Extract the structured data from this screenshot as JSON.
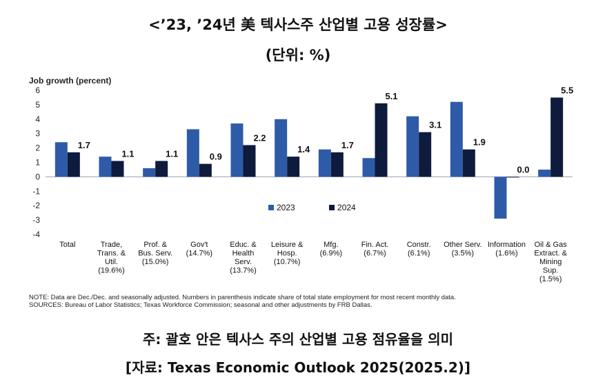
{
  "page": {
    "title": "<’23, ’24년 美 텍사스주 산업별 고용 성장률>",
    "unit": "(단위: %)",
    "footnote": "주: 괄호 안은 텍사스 주의 산업별 고용 점유율을 의미",
    "source": "[자료: Texas Economic Outlook 2025(2025.2)]"
  },
  "chart_data": {
    "type": "bar",
    "ylabel": "Job growth (percent)",
    "ylim": [
      -4,
      6
    ],
    "yticks": [
      6,
      5,
      4,
      3,
      2,
      1,
      0,
      -1,
      -2,
      -3,
      -4
    ],
    "categories": [
      [
        "Total"
      ],
      [
        "Trade,",
        "Trans. &",
        "Util.",
        "(19.6%)"
      ],
      [
        "Prof. &",
        "Bus. Serv.",
        "(15.0%)"
      ],
      [
        "Gov't",
        "(14.7%)"
      ],
      [
        "Educ. &",
        "Health",
        "Serv.",
        "(13.7%)"
      ],
      [
        "Leisure &",
        "Hosp.",
        "(10.7%)"
      ],
      [
        "Mfg.",
        "(6.9%)"
      ],
      [
        "Fin. Act.",
        "(6.7%)"
      ],
      [
        "Constr.",
        "(6.1%)"
      ],
      [
        "Other Serv.",
        "(3.5%)"
      ],
      [
        "Information",
        "(1.6%)"
      ],
      [
        "Oil & Gas",
        "Extract. &",
        "Mining",
        "Sup.",
        "(1.5%)"
      ]
    ],
    "series": [
      {
        "name": "2023",
        "color": "#2E5BA8",
        "values": [
          2.4,
          1.4,
          0.6,
          3.3,
          3.7,
          4.0,
          1.9,
          1.3,
          4.2,
          5.2,
          -2.9,
          0.5
        ]
      },
      {
        "name": "2024",
        "color": "#0F1B3D",
        "values": [
          1.7,
          1.1,
          1.1,
          0.9,
          2.2,
          1.4,
          1.7,
          5.1,
          3.1,
          1.9,
          0.0,
          5.5
        ],
        "data_labels": [
          "1.7",
          "1.1",
          "1.1",
          "0.9",
          "2.2",
          "1.4",
          "1.7",
          "5.1",
          "3.1",
          "1.9",
          "0.0",
          "5.5"
        ]
      }
    ],
    "legend_position": "bottom-center",
    "notes": [
      "NOTE: Data are Dec./Dec. and seasonally adjusted. Numbers in parenthesis indicate share of total state employment for most recent monthly data.",
      "SOURCES: Bureau of Labor Statistics; Texas Workforce Commission; seasonal and other adjustments by FRB Dallas."
    ]
  }
}
